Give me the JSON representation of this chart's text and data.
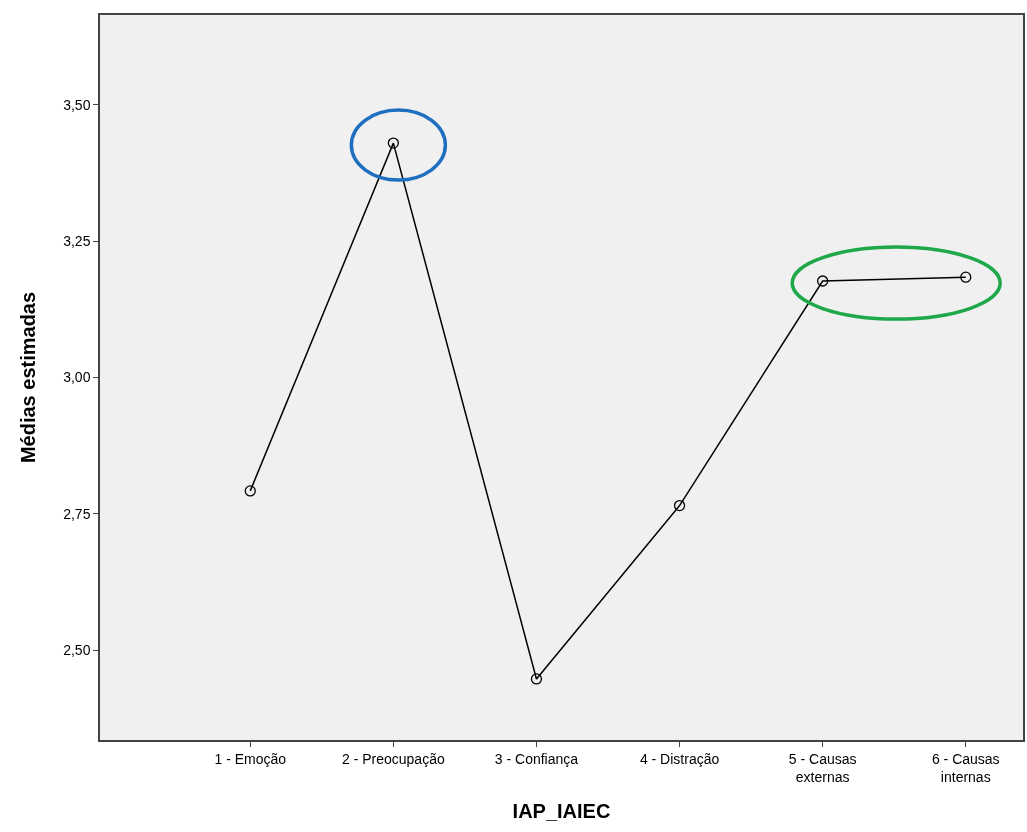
{
  "chart_data": {
    "type": "line",
    "xlabel": "IAP_IAIEC",
    "ylabel": "Médias estimadas",
    "categories": [
      "1 - Emoção",
      "2 - Preocupação",
      "3 - Confiança",
      "4 - Distração",
      "5 - Causas\nexternas",
      "6 - Causas\ninternas"
    ],
    "series": [
      {
        "color": "#000000",
        "values": [
          2.792,
          3.43,
          2.447,
          2.765,
          3.177,
          3.184
        ]
      }
    ],
    "ylim": [
      2.335,
      3.665
    ],
    "yticks": [
      {
        "value": 2.5,
        "label": "2,50"
      },
      {
        "value": 2.75,
        "label": "2,75"
      },
      {
        "value": 3.0,
        "label": "3,00"
      },
      {
        "value": 3.25,
        "label": "3,25"
      },
      {
        "value": 3.5,
        "label": "3,50"
      }
    ],
    "grid": false,
    "marker": "circle",
    "line_style": "solid"
  }
}
